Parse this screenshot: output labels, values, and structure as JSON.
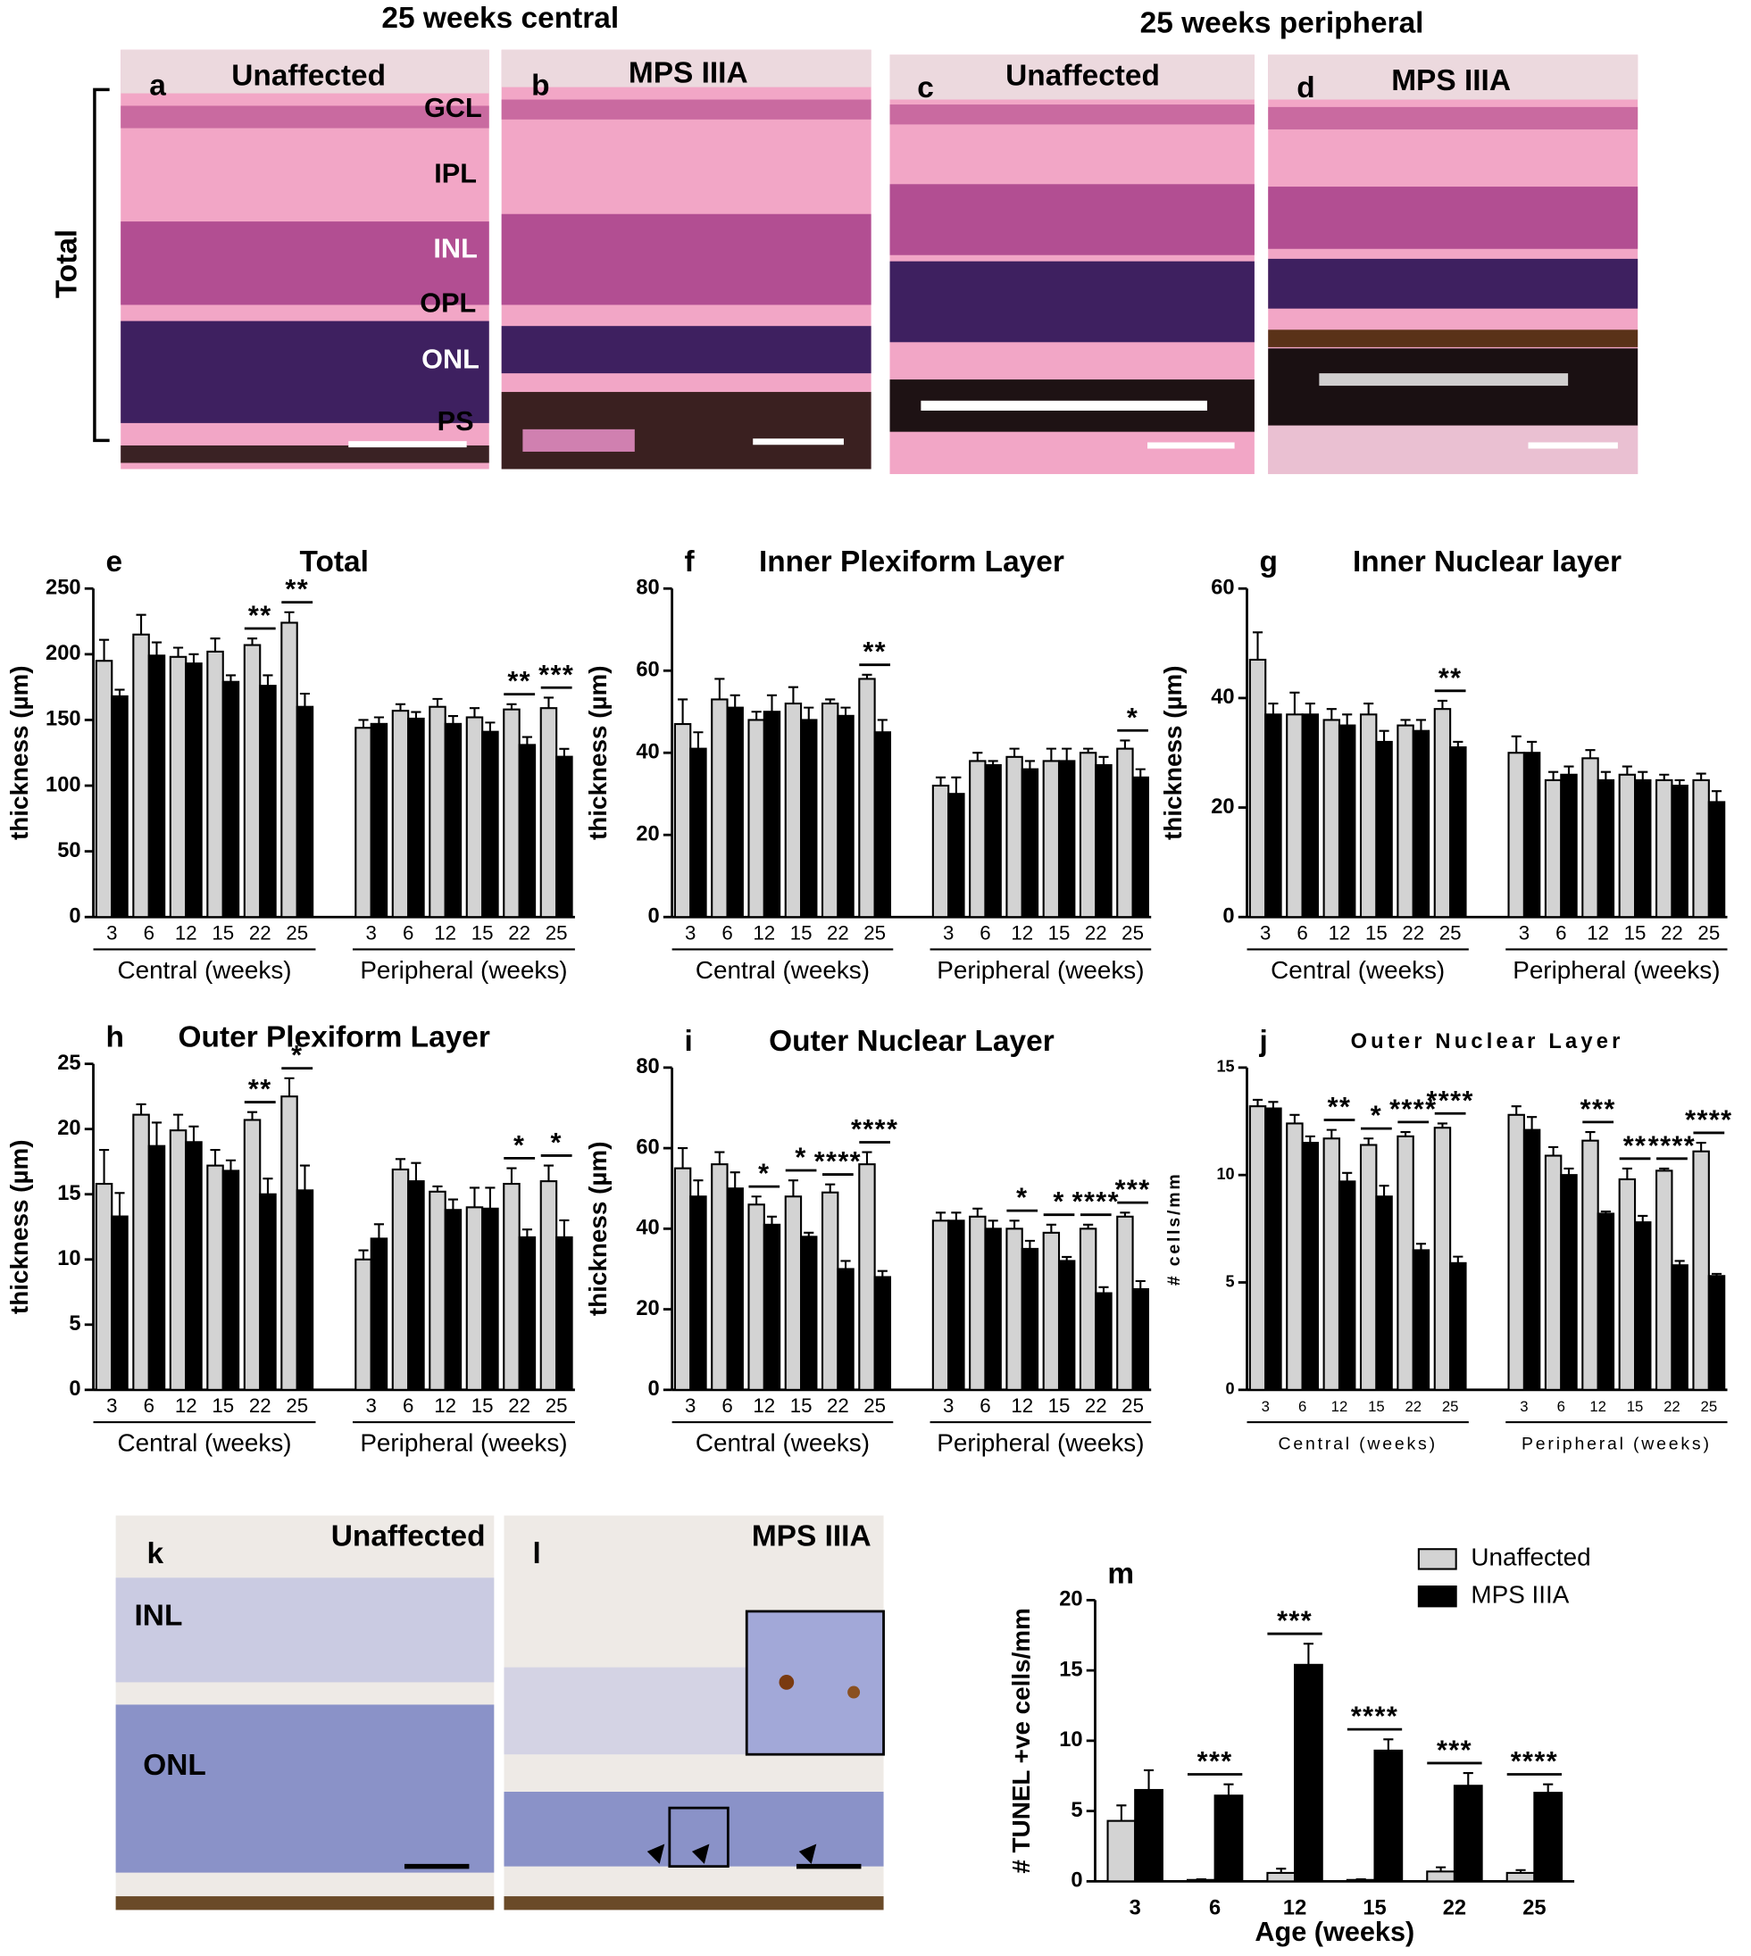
{
  "panels": {
    "headings": [
      "25 weeks central",
      "25 weeks peripheral"
    ],
    "micrographs": [
      {
        "letter": "a",
        "label": "Unaffected"
      },
      {
        "letter": "b",
        "label": "MPS IIIA"
      },
      {
        "letter": "c",
        "label": "Unaffected"
      },
      {
        "letter": "d",
        "label": "MPS IIIA"
      }
    ],
    "layers": [
      "GCL",
      "IPL",
      "INL",
      "OPL",
      "ONL",
      "PS"
    ],
    "bracket": "Total",
    "tunel": [
      {
        "letter": "k",
        "label": "Unaffected",
        "layers": [
          "INL",
          "ONL"
        ]
      },
      {
        "letter": "l",
        "label": "MPS IIIA"
      }
    ]
  },
  "chart_data": [
    {
      "type": "bar",
      "letter": "e",
      "title": "Total",
      "ylabel": "thickness (µm)",
      "ylim": [
        0,
        250
      ],
      "yticks": [
        0,
        50,
        100,
        150,
        200,
        250
      ],
      "categories": [
        "3",
        "6",
        "12",
        "15",
        "22",
        "25",
        "3",
        "6",
        "12",
        "15",
        "22",
        "25"
      ],
      "groups": [
        "Central (weeks)",
        "Peripheral (weeks)"
      ],
      "series": [
        {
          "color": "#d3d3d3",
          "values": [
            195,
            215,
            198,
            202,
            207,
            224,
            144,
            157,
            160,
            152,
            158,
            159
          ],
          "errors": [
            16,
            15,
            7,
            10,
            5,
            8,
            6,
            5,
            6,
            7,
            4,
            8
          ]
        },
        {
          "color": "#000000",
          "values": [
            168,
            199,
            193,
            179,
            176,
            160,
            147,
            151,
            147,
            141,
            131,
            122
          ],
          "errors": [
            5,
            10,
            7,
            5,
            8,
            10,
            5,
            5,
            6,
            7,
            6,
            6
          ]
        }
      ],
      "significance": [
        null,
        null,
        null,
        null,
        "**",
        "**",
        null,
        null,
        null,
        null,
        "**",
        "***"
      ]
    },
    {
      "type": "bar",
      "letter": "f",
      "title": "Inner Plexiform Layer",
      "ylabel": "thickness (µm)",
      "ylim": [
        0,
        80
      ],
      "yticks": [
        0,
        20,
        40,
        60,
        80
      ],
      "categories": [
        "3",
        "6",
        "12",
        "15",
        "22",
        "25",
        "3",
        "6",
        "12",
        "15",
        "22",
        "25"
      ],
      "groups": [
        "Central (weeks)",
        "Peripheral (weeks)"
      ],
      "series": [
        {
          "color": "#d3d3d3",
          "values": [
            47,
            53,
            48,
            52,
            52,
            58,
            32,
            38,
            39,
            38,
            40,
            41
          ],
          "errors": [
            6,
            5,
            2,
            4,
            1,
            1,
            2,
            2,
            2,
            3,
            1,
            2
          ]
        },
        {
          "color": "#000000",
          "values": [
            41,
            51,
            50,
            48,
            49,
            45,
            30,
            37,
            36,
            38,
            37,
            34
          ],
          "errors": [
            4,
            3,
            4,
            3,
            2,
            3,
            4,
            1,
            2,
            3,
            2,
            2
          ]
        }
      ],
      "significance": [
        null,
        null,
        null,
        null,
        null,
        "**",
        null,
        null,
        null,
        null,
        null,
        "*"
      ]
    },
    {
      "type": "bar",
      "letter": "g",
      "title": "Inner Nuclear layer",
      "ylabel": "thickness (µm)",
      "ylim": [
        0,
        60
      ],
      "yticks": [
        0,
        20,
        40,
        60
      ],
      "categories": [
        "3",
        "6",
        "12",
        "15",
        "22",
        "25",
        "3",
        "6",
        "12",
        "15",
        "22",
        "25"
      ],
      "groups": [
        "Central (weeks)",
        "Peripheral (weeks)"
      ],
      "series": [
        {
          "color": "#d3d3d3",
          "values": [
            47,
            37,
            36,
            37,
            35,
            38,
            30,
            25,
            29,
            26,
            25,
            25
          ],
          "errors": [
            5,
            4,
            2,
            2,
            1,
            1.5,
            3,
            1.5,
            1.5,
            1.5,
            1,
            1.2
          ]
        },
        {
          "color": "#000000",
          "values": [
            37,
            37,
            35,
            32,
            34,
            31,
            30,
            26,
            25,
            25,
            24,
            21
          ],
          "errors": [
            2,
            2,
            2,
            2,
            2,
            1,
            2,
            1.5,
            1.5,
            1.5,
            1,
            2
          ]
        }
      ],
      "significance": [
        null,
        null,
        null,
        null,
        null,
        "**",
        null,
        null,
        null,
        null,
        null,
        null
      ]
    },
    {
      "type": "bar",
      "letter": "h",
      "title": "Outer Plexiform Layer",
      "ylabel": "thickness (µm)",
      "ylim": [
        0,
        25
      ],
      "yticks": [
        0,
        5,
        10,
        15,
        20,
        25
      ],
      "categories": [
        "3",
        "6",
        "12",
        "15",
        "22",
        "25",
        "3",
        "6",
        "12",
        "15",
        "22",
        "25"
      ],
      "groups": [
        "Central (weeks)",
        "Peripheral (weeks)"
      ],
      "series": [
        {
          "color": "#d3d3d3",
          "values": [
            15.8,
            21.1,
            19.9,
            17.2,
            20.7,
            22.5,
            10.0,
            16.9,
            15.2,
            14.0,
            15.8,
            16.0
          ],
          "errors": [
            2.6,
            0.8,
            1.2,
            1.2,
            0.6,
            1.4,
            0.7,
            0.8,
            0.4,
            1.5,
            1.2,
            1.2
          ]
        },
        {
          "color": "#000000",
          "values": [
            13.3,
            18.7,
            19.0,
            16.8,
            15.0,
            15.3,
            11.6,
            16.0,
            13.8,
            13.9,
            11.7,
            11.7
          ],
          "errors": [
            1.8,
            1.8,
            1.2,
            0.8,
            1.2,
            1.9,
            1.1,
            1.4,
            0.8,
            1.6,
            0.6,
            1.3
          ]
        }
      ],
      "significance": [
        null,
        null,
        null,
        null,
        "**",
        "*",
        null,
        null,
        null,
        null,
        "*",
        "*"
      ]
    },
    {
      "type": "bar",
      "letter": "i",
      "title": "Outer Nuclear Layer",
      "ylabel": "thickness (µm)",
      "ylim": [
        0,
        80
      ],
      "yticks": [
        0,
        20,
        40,
        60,
        80
      ],
      "categories": [
        "3",
        "6",
        "12",
        "15",
        "22",
        "25",
        "3",
        "6",
        "12",
        "15",
        "22",
        "25"
      ],
      "groups": [
        "Central (weeks)",
        "Peripheral (weeks)"
      ],
      "series": [
        {
          "color": "#d3d3d3",
          "values": [
            55,
            56,
            46,
            48,
            49,
            56,
            42,
            43,
            40,
            39,
            40,
            43
          ],
          "errors": [
            5,
            3,
            2,
            4,
            2,
            3,
            2,
            2,
            2,
            2,
            1,
            1
          ]
        },
        {
          "color": "#000000",
          "values": [
            48,
            50,
            41,
            38,
            30,
            28,
            42,
            40,
            35,
            32,
            24,
            25
          ],
          "errors": [
            4,
            4,
            2,
            1,
            2,
            1.5,
            2,
            2,
            2,
            1,
            1.5,
            2
          ]
        }
      ],
      "significance": [
        null,
        null,
        "*",
        "*",
        "****",
        "****",
        null,
        null,
        "*",
        "*",
        "****",
        "***"
      ]
    },
    {
      "type": "bar",
      "letter": "j",
      "title": "Outer Nuclear Layer",
      "ylabel": "# cells/mm",
      "ylim": [
        0,
        15
      ],
      "yticks": [
        0,
        5,
        10,
        15
      ],
      "categories": [
        "3",
        "6",
        "12",
        "15",
        "22",
        "25",
        "3",
        "6",
        "12",
        "15",
        "22",
        "25"
      ],
      "groups": [
        "Central (weeks)",
        "Peripheral (weeks)"
      ],
      "series": [
        {
          "color": "#d3d3d3",
          "values": [
            13.2,
            12.4,
            11.7,
            11.4,
            11.8,
            12.2,
            12.8,
            10.9,
            11.6,
            9.8,
            10.2,
            11.1
          ],
          "errors": [
            0.3,
            0.4,
            0.4,
            0.3,
            0.2,
            0.2,
            0.4,
            0.4,
            0.4,
            0.5,
            0.1,
            0.4
          ]
        },
        {
          "color": "#000000",
          "values": [
            13.1,
            11.5,
            9.7,
            9.0,
            6.5,
            5.9,
            12.1,
            10.0,
            8.2,
            7.8,
            5.8,
            5.3
          ],
          "errors": [
            0.3,
            0.3,
            0.4,
            0.5,
            0.3,
            0.3,
            0.6,
            0.3,
            0.1,
            0.3,
            0.2,
            0.1
          ]
        }
      ],
      "significance": [
        null,
        null,
        "**",
        "*",
        "****",
        "****",
        null,
        null,
        "***",
        "**",
        "****",
        "****"
      ]
    },
    {
      "type": "bar",
      "letter": "m",
      "ylabel": "# TUNEL +ve cells/mm",
      "xlabel": "Age (weeks)",
      "ylim": [
        0,
        20
      ],
      "yticks": [
        0,
        5,
        10,
        15,
        20
      ],
      "legend": "upper right",
      "categories": [
        "3",
        "6",
        "12",
        "15",
        "22",
        "25"
      ],
      "series": [
        {
          "name": "Unaffected",
          "color": "#d3d3d3",
          "values": [
            4.3,
            0.1,
            0.6,
            0.1,
            0.7,
            0.6
          ],
          "errors": [
            1.1,
            0.05,
            0.3,
            0.05,
            0.3,
            0.2
          ]
        },
        {
          "name": "MPS IIIA",
          "color": "#000000",
          "values": [
            6.5,
            6.1,
            15.4,
            9.3,
            6.8,
            6.3
          ],
          "errors": [
            1.4,
            0.8,
            1.5,
            0.8,
            0.9,
            0.6
          ]
        }
      ],
      "significance": [
        null,
        "***",
        "***",
        "****",
        "***",
        "****"
      ]
    }
  ]
}
